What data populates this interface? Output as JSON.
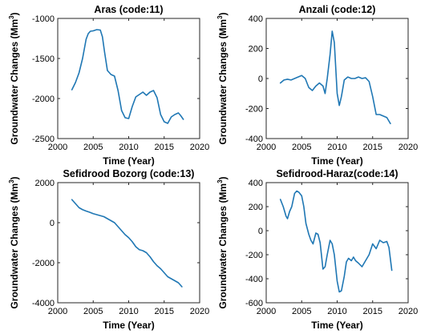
{
  "figure": {
    "line_color": "#1f77b4",
    "xlabel": "Time (Year)",
    "ylabel_main": "Groundwater Changes (Mm",
    "ylabel_sup": "3",
    "ylabel_close": ")"
  },
  "chart_data": [
    {
      "type": "line",
      "title": "Aras (code:11)",
      "xlabel": "Time (Year)",
      "ylabel": "Groundwater Changes (Mm3)",
      "xlim": [
        2000,
        2020
      ],
      "ylim": [
        -2500,
        -1000
      ],
      "xticks": [
        2000,
        2005,
        2010,
        2015,
        2020
      ],
      "yticks": [
        -2500,
        -2000,
        -1500,
        -1000
      ],
      "xticklabels": [
        "2000",
        "2005",
        "2010",
        "2015",
        "2020"
      ],
      "yticklabels": [
        "-2500",
        "-2000",
        "-1500",
        "-1000"
      ],
      "grid": false,
      "x": [
        2002.0,
        2002.5,
        2003.0,
        2003.5,
        2004.0,
        2004.3,
        2004.6,
        2005.0,
        2005.5,
        2006.0,
        2006.3,
        2006.6,
        2007.0,
        2007.5,
        2008.0,
        2008.5,
        2009.0,
        2009.5,
        2010.0,
        2010.5,
        2011.0,
        2011.5,
        2012.0,
        2012.5,
        2013.0,
        2013.5,
        2014.0,
        2014.5,
        2015.0,
        2015.5,
        2016.0,
        2016.5,
        2017.0,
        2017.3,
        2017.7
      ],
      "y": [
        -1890,
        -1800,
        -1680,
        -1500,
        -1260,
        -1190,
        -1160,
        -1155,
        -1140,
        -1145,
        -1230,
        -1420,
        -1650,
        -1700,
        -1720,
        -1900,
        -2150,
        -2240,
        -2250,
        -2100,
        -1980,
        -1950,
        -1920,
        -1960,
        -1920,
        -1900,
        -1990,
        -2200,
        -2290,
        -2310,
        -2230,
        -2200,
        -2180,
        -2210,
        -2260
      ]
    },
    {
      "type": "line",
      "title": "Anzali (code:12)",
      "xlabel": "Time (Year)",
      "ylabel": "Groundwater Changes (Mm3)",
      "xlim": [
        2000,
        2020
      ],
      "ylim": [
        -400,
        400
      ],
      "xticks": [
        2000,
        2005,
        2010,
        2015,
        2020
      ],
      "yticks": [
        -400,
        -200,
        0,
        200,
        400
      ],
      "xticklabels": [
        "2000",
        "2005",
        "2010",
        "2015",
        "2020"
      ],
      "yticklabels": [
        "-400",
        "-200",
        "0",
        "200",
        "400"
      ],
      "grid": false,
      "x": [
        2002.0,
        2002.5,
        2003.0,
        2003.5,
        2004.0,
        2004.5,
        2005.0,
        2005.5,
        2006.0,
        2006.5,
        2007.0,
        2007.5,
        2008.0,
        2008.3,
        2008.6,
        2009.0,
        2009.3,
        2009.6,
        2010.0,
        2010.3,
        2010.6,
        2011.0,
        2011.5,
        2012.0,
        2012.5,
        2013.0,
        2013.5,
        2014.0,
        2014.5,
        2015.0,
        2015.5,
        2016.0,
        2016.5,
        2017.0,
        2017.5
      ],
      "y": [
        -30,
        -10,
        -5,
        -10,
        0,
        10,
        20,
        0,
        -60,
        -80,
        -50,
        -30,
        -50,
        -100,
        0,
        160,
        315,
        240,
        -100,
        -180,
        -120,
        -10,
        10,
        0,
        0,
        10,
        0,
        5,
        -20,
        -120,
        -240,
        -240,
        -250,
        -260,
        -300
      ]
    },
    {
      "type": "line",
      "title": "Sefidrood Bozorg (code:13)",
      "xlabel": "Time (Year)",
      "ylabel": "Groundwater Changes (Mm3)",
      "xlim": [
        2000,
        2020
      ],
      "ylim": [
        -4000,
        2000
      ],
      "xticks": [
        2000,
        2005,
        2010,
        2015,
        2020
      ],
      "yticks": [
        -4000,
        -2000,
        0,
        2000
      ],
      "xticklabels": [
        "2000",
        "2005",
        "2010",
        "2015",
        "2020"
      ],
      "yticklabels": [
        "-4000",
        "-2000",
        "0",
        "2000"
      ],
      "grid": false,
      "x": [
        2002.0,
        2002.5,
        2003.0,
        2003.5,
        2004.0,
        2004.5,
        2005.0,
        2005.5,
        2006.0,
        2006.5,
        2007.0,
        2007.5,
        2008.0,
        2008.5,
        2009.0,
        2009.5,
        2010.0,
        2010.5,
        2011.0,
        2011.5,
        2012.0,
        2012.5,
        2013.0,
        2013.5,
        2014.0,
        2014.5,
        2015.0,
        2015.5,
        2016.0,
        2016.5,
        2017.0,
        2017.5
      ],
      "y": [
        1150,
        950,
        750,
        650,
        580,
        520,
        450,
        400,
        350,
        300,
        200,
        100,
        0,
        -200,
        -400,
        -600,
        -750,
        -950,
        -1200,
        -1350,
        -1400,
        -1500,
        -1700,
        -1950,
        -2150,
        -2300,
        -2500,
        -2700,
        -2800,
        -2900,
        -3000,
        -3200
      ]
    },
    {
      "type": "line",
      "title": "Sefidrood-Haraz(code:14)",
      "xlabel": "Time (Year)",
      "ylabel": "Groundwater Changes (Mm3)",
      "xlim": [
        2000,
        2020
      ],
      "ylim": [
        -600,
        400
      ],
      "xticks": [
        2000,
        2005,
        2010,
        2015,
        2020
      ],
      "yticks": [
        -600,
        -400,
        -200,
        0,
        200,
        400
      ],
      "xticklabels": [
        "2000",
        "2005",
        "2010",
        "2015",
        "2020"
      ],
      "yticklabels": [
        "-600",
        "-400",
        "-200",
        "0",
        "200",
        "400"
      ],
      "grid": false,
      "x": [
        2002.0,
        2002.4,
        2002.8,
        2003.0,
        2003.3,
        2003.6,
        2004.0,
        2004.3,
        2004.6,
        2005.0,
        2005.3,
        2005.6,
        2006.0,
        2006.3,
        2006.6,
        2007.0,
        2007.3,
        2007.6,
        2008.0,
        2008.3,
        2008.6,
        2009.0,
        2009.3,
        2009.6,
        2010.0,
        2010.3,
        2010.6,
        2011.0,
        2011.3,
        2011.6,
        2012.0,
        2012.3,
        2012.6,
        2013.0,
        2013.5,
        2014.0,
        2014.5,
        2015.0,
        2015.5,
        2016.0,
        2016.5,
        2017.0,
        2017.3,
        2017.7
      ],
      "y": [
        260,
        200,
        120,
        100,
        160,
        200,
        310,
        330,
        320,
        290,
        200,
        60,
        -30,
        -80,
        -110,
        -20,
        -30,
        -100,
        -320,
        -300,
        -200,
        -80,
        -110,
        -200,
        -420,
        -510,
        -500,
        -380,
        -260,
        -230,
        -250,
        -220,
        -250,
        -270,
        -300,
        -250,
        -200,
        -110,
        -150,
        -80,
        -100,
        -90,
        -140,
        -330
      ]
    }
  ]
}
